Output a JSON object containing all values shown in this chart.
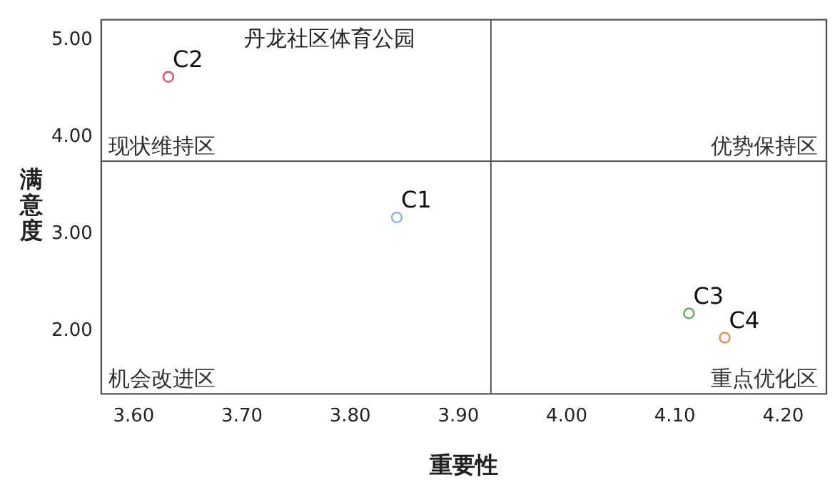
{
  "chart_data": {
    "type": "scatter",
    "title": "丹龙社区体育公园",
    "xlabel": "重要性",
    "ylabel": "满意度",
    "xlim": [
      3.57,
      4.24
    ],
    "ylim": [
      1.35,
      5.21
    ],
    "xticks": [
      {
        "value": 3.6,
        "label": "3.60"
      },
      {
        "value": 3.7,
        "label": "3.70"
      },
      {
        "value": 3.8,
        "label": "3.80"
      },
      {
        "value": 3.9,
        "label": "3.90"
      },
      {
        "value": 4.0,
        "label": "4.00"
      },
      {
        "value": 4.1,
        "label": "4.10"
      },
      {
        "value": 4.2,
        "label": "4.20"
      }
    ],
    "yticks": [
      {
        "value": 2,
        "label": "2.00"
      },
      {
        "value": 3,
        "label": "3.00"
      },
      {
        "value": 4,
        "label": "4.00"
      },
      {
        "value": 5,
        "label": "5.00"
      }
    ],
    "series": [
      {
        "name": "C1",
        "color": "#8ab4e8",
        "x": [
          3.843
        ],
        "values": [
          3.17
        ]
      },
      {
        "name": "C2",
        "color": "#e05070",
        "x": [
          3.632
        ],
        "values": [
          4.62
        ]
      },
      {
        "name": "C3",
        "color": "#6aaa60",
        "x": [
          4.113
        ],
        "values": [
          2.18
        ]
      },
      {
        "name": "C4",
        "color": "#f08a50",
        "x": [
          4.146
        ],
        "values": [
          1.93
        ]
      }
    ],
    "ref_lines": [
      {
        "axis": "x",
        "value": 3.93,
        "color": "#555555"
      },
      {
        "axis": "y",
        "value": 3.75,
        "color": "#555555"
      }
    ],
    "annotations": [
      "现状维持区",
      "优势保持区",
      "机会改进区",
      "重点优化区"
    ],
    "marker": "circle",
    "grid": false,
    "legend": false
  }
}
